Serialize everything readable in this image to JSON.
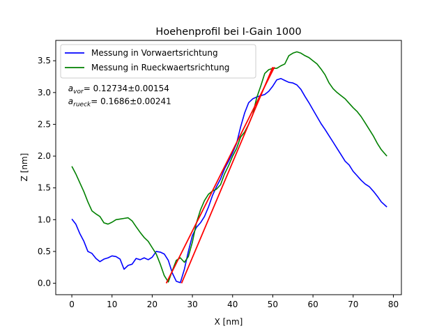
{
  "chart_data": {
    "type": "line",
    "title": "Hoehenprofil bei I-Gain  1000",
    "xlabel": "X [nm]",
    "ylabel": "Z [nm]",
    "xlim": [
      -4,
      82
    ],
    "ylim": [
      -0.18,
      3.82
    ],
    "xticks": [
      "0",
      "10",
      "20",
      "30",
      "40",
      "50",
      "60",
      "70",
      "80"
    ],
    "yticks": [
      "0.0",
      "0.5",
      "1.0",
      "1.5",
      "2.0",
      "2.5",
      "3.0",
      "3.5"
    ],
    "legend_position": "upper-left",
    "series": [
      {
        "name": "Messung in Vorwaertsrichtung",
        "color": "#0000ff",
        "x": [
          0,
          1,
          2,
          3,
          4,
          5,
          6,
          7,
          8,
          9,
          10,
          11,
          12,
          13,
          14,
          15,
          16,
          17,
          18,
          19,
          20,
          21,
          22,
          23,
          24,
          25,
          26,
          27,
          28,
          29,
          30,
          31,
          32,
          33,
          34,
          35,
          36,
          37,
          38,
          39,
          40,
          41,
          42,
          43,
          44,
          45,
          46,
          47,
          48,
          49,
          50,
          51,
          52,
          53,
          54,
          55,
          56,
          57,
          58,
          59,
          60,
          61,
          62,
          63,
          64,
          65,
          66,
          67,
          68,
          69,
          70,
          71,
          72,
          73,
          74,
          75,
          76,
          77,
          78.4
        ],
        "y": [
          1.01,
          0.93,
          0.78,
          0.66,
          0.5,
          0.47,
          0.39,
          0.34,
          0.38,
          0.4,
          0.43,
          0.42,
          0.38,
          0.22,
          0.28,
          0.3,
          0.39,
          0.37,
          0.4,
          0.37,
          0.41,
          0.5,
          0.49,
          0.46,
          0.36,
          0.16,
          0.03,
          0.01,
          0.22,
          0.5,
          0.75,
          0.88,
          0.95,
          1.05,
          1.2,
          1.38,
          1.52,
          1.64,
          1.8,
          1.92,
          2.05,
          2.2,
          2.46,
          2.68,
          2.84,
          2.9,
          2.93,
          2.95,
          2.97,
          3.02,
          3.1,
          3.2,
          3.22,
          3.19,
          3.16,
          3.15,
          3.12,
          3.05,
          2.94,
          2.84,
          2.73,
          2.62,
          2.51,
          2.42,
          2.32,
          2.22,
          2.12,
          2.02,
          1.92,
          1.86,
          1.76,
          1.69,
          1.62,
          1.56,
          1.52,
          1.45,
          1.37,
          1.28,
          1.2
        ]
      },
      {
        "name": "Messung in Rueckwaertsrichtung",
        "color": "#008000",
        "x": [
          0,
          1,
          2,
          3,
          4,
          5,
          6,
          7,
          8,
          9,
          10,
          11,
          12,
          13,
          14,
          15,
          16,
          17,
          18,
          19,
          20,
          21,
          22,
          23,
          24,
          25,
          26,
          27,
          28,
          29,
          30,
          31,
          32,
          33,
          34,
          35,
          36,
          37,
          38,
          39,
          40,
          41,
          42,
          43,
          44,
          45,
          46,
          47,
          48,
          49,
          50,
          51,
          52,
          53,
          54,
          55,
          56,
          57,
          58,
          59,
          60,
          61,
          62,
          63,
          64,
          65,
          66,
          67,
          68,
          69,
          70,
          71,
          72,
          73,
          74,
          75,
          76,
          77,
          78.4
        ],
        "y": [
          1.84,
          1.72,
          1.58,
          1.44,
          1.28,
          1.14,
          1.09,
          1.05,
          0.95,
          0.93,
          0.96,
          1.0,
          1.01,
          1.02,
          1.03,
          0.98,
          0.89,
          0.8,
          0.72,
          0.66,
          0.56,
          0.46,
          0.3,
          0.12,
          0.02,
          0.2,
          0.36,
          0.4,
          0.33,
          0.42,
          0.65,
          0.95,
          1.15,
          1.3,
          1.4,
          1.45,
          1.48,
          1.55,
          1.72,
          1.85,
          2.0,
          2.12,
          2.3,
          2.38,
          2.5,
          2.65,
          2.92,
          3.1,
          3.3,
          3.36,
          3.38,
          3.38,
          3.42,
          3.45,
          3.58,
          3.62,
          3.64,
          3.62,
          3.58,
          3.55,
          3.5,
          3.45,
          3.37,
          3.28,
          3.15,
          3.06,
          3.0,
          2.95,
          2.9,
          2.83,
          2.76,
          2.7,
          2.62,
          2.52,
          2.42,
          2.32,
          2.2,
          2.1,
          2.0
        ]
      }
    ],
    "fit_lines": [
      {
        "color": "#ff0000",
        "x": [
          23.5,
          50.4
        ],
        "y": [
          0.0,
          3.4
        ]
      },
      {
        "color": "#ff0000",
        "x": [
          27.3,
          50.0
        ],
        "y": [
          0.0,
          3.4
        ]
      }
    ],
    "annotations": [
      {
        "symbol": "a",
        "sub": "vor",
        "text": "= 0.12734±0.00154",
        "x": -1,
        "y": 3.02
      },
      {
        "symbol": "a",
        "sub": "rueck",
        "text": "= 0.1686±0.00241",
        "x": -1,
        "y": 2.82
      }
    ]
  }
}
